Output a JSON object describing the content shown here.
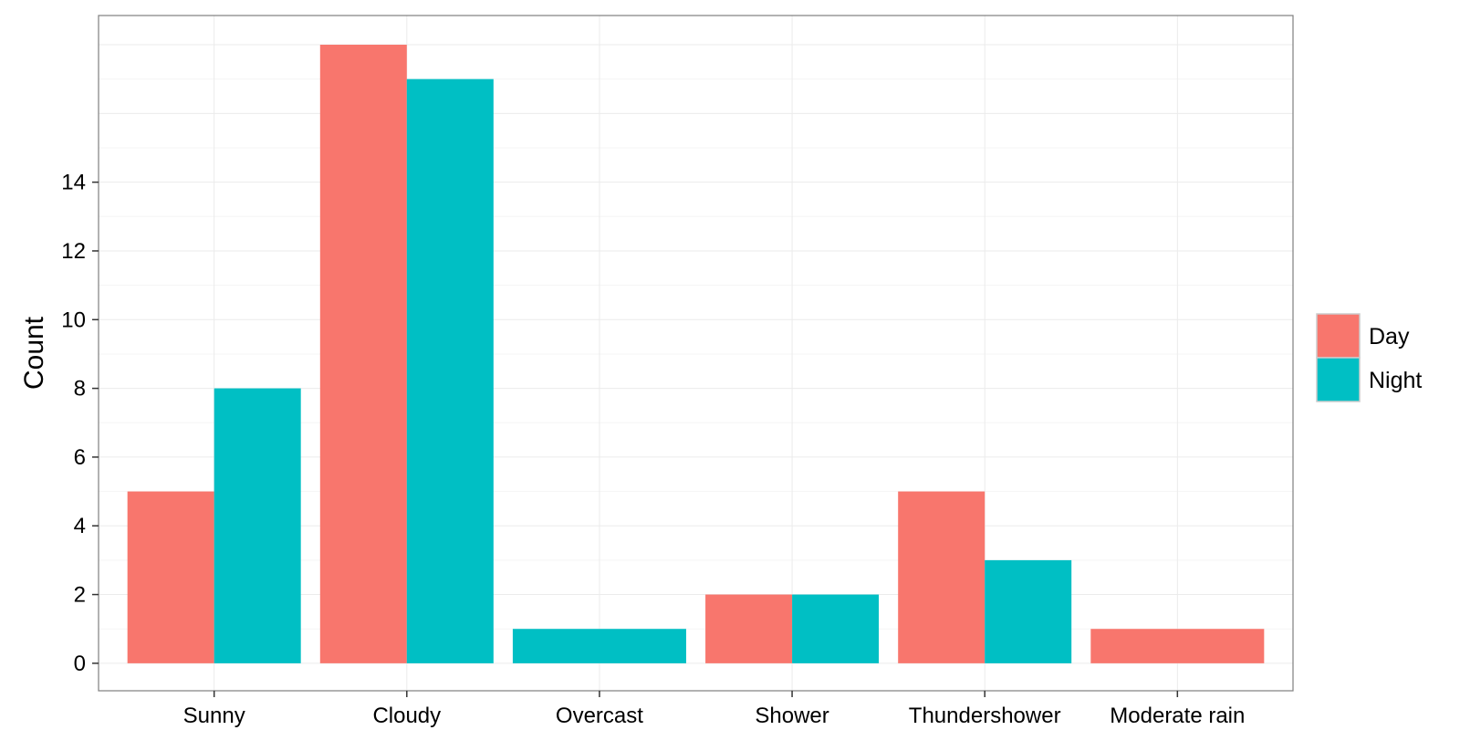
{
  "chart_data": {
    "type": "bar",
    "title": "",
    "xlabel": "",
    "ylabel": "Count",
    "categories": [
      "Sunny",
      "Cloudy",
      "Overcast",
      "Shower",
      "Thundershower",
      "Moderate rain"
    ],
    "series": [
      {
        "name": "Day",
        "values": [
          5,
          18,
          0,
          2,
          5,
          1
        ],
        "color": "#F8766D"
      },
      {
        "name": "Night",
        "values": [
          8,
          17,
          1,
          2,
          3,
          0
        ],
        "color": "#00BFC4"
      }
    ],
    "layout_style": "dodge",
    "ylim": [
      -0.8,
      18.85
    ],
    "yticks": [
      0,
      2,
      4,
      6,
      8,
      10,
      12,
      14
    ],
    "grid": true,
    "legend_position": "right",
    "colors": {
      "grid_major": "#EBEBEB",
      "grid_minor": "#F5F5F5",
      "panel_border": "#7F7F7F",
      "axis": "#333333"
    }
  }
}
